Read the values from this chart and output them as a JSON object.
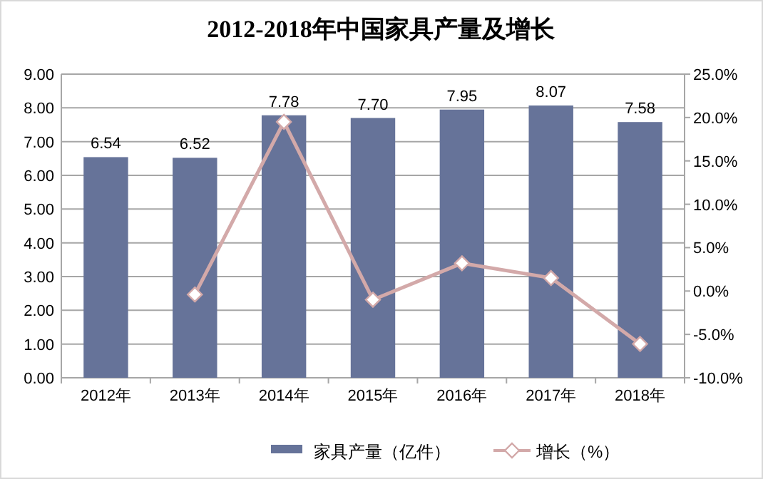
{
  "chart_data": {
    "type": "bar",
    "title": "2012-2018年中国家具产量及增长",
    "categories": [
      "2012年",
      "2013年",
      "2014年",
      "2015年",
      "2016年",
      "2017年",
      "2018年"
    ],
    "series": [
      {
        "name": "家具产量（亿件）",
        "color": "#667399",
        "values": [
          6.54,
          6.52,
          7.78,
          7.7,
          7.95,
          8.07,
          7.58
        ],
        "value_labels": [
          "6.54",
          "6.52",
          "7.78",
          "7.70",
          "7.95",
          "8.07",
          "7.58"
        ]
      },
      {
        "name": "增长（%）",
        "type": "line",
        "axis": "y2",
        "color": "#d3a9a9",
        "marker": "diamond",
        "values": [
          null,
          -0.4,
          19.5,
          -1.0,
          3.2,
          1.5,
          -6.1
        ]
      }
    ],
    "ylim": [
      0,
      9
    ],
    "yticks": [
      {
        "value": 0,
        "label": "0.00"
      },
      {
        "value": 1,
        "label": "1.00"
      },
      {
        "value": 2,
        "label": "2.00"
      },
      {
        "value": 3,
        "label": "3.00"
      },
      {
        "value": 4,
        "label": "4.00"
      },
      {
        "value": 5,
        "label": "5.00"
      },
      {
        "value": 6,
        "label": "6.00"
      },
      {
        "value": 7,
        "label": "7.00"
      },
      {
        "value": 8,
        "label": "8.00"
      },
      {
        "value": 9,
        "label": "9.00"
      }
    ],
    "y2lim": [
      -10,
      25
    ],
    "y2ticks": [
      {
        "value": -10,
        "label": "-10.0%"
      },
      {
        "value": -5,
        "label": "-5.0%"
      },
      {
        "value": 0,
        "label": "0.0%"
      },
      {
        "value": 5,
        "label": "5.0%"
      },
      {
        "value": 10,
        "label": "10.0%"
      },
      {
        "value": 15,
        "label": "15.0%"
      },
      {
        "value": 20,
        "label": "20.0%"
      },
      {
        "value": 25,
        "label": "25.0%"
      }
    ],
    "grid": "y",
    "legend": "bottom"
  }
}
